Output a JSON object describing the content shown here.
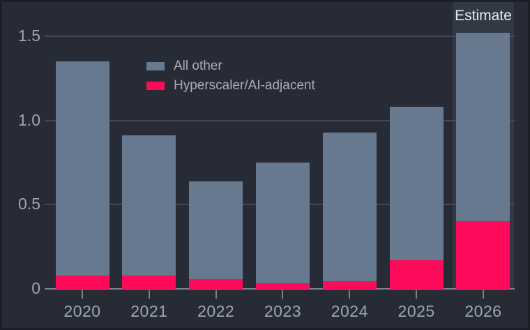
{
  "chart": {
    "background": "#262b35",
    "plot": {
      "grid_color": "#434a55",
      "axis_color": "#7e848e",
      "tick_label_color": "#9fa5ae"
    },
    "estimate": {
      "label": "Estimate",
      "band_color": "#323945",
      "text_color": "#e9ebee"
    },
    "legend": {
      "text_color": "#a9aeb6",
      "items": [
        {
          "label": "All other",
          "color": "#66798e"
        },
        {
          "label": "Hyperscaler/AI-adjacent",
          "color": "#fb0b5a"
        }
      ]
    }
  },
  "chart_data": {
    "type": "bar",
    "stacked": true,
    "title": "",
    "xlabel": "",
    "ylabel": "",
    "categories": [
      "2020",
      "2021",
      "2022",
      "2023",
      "2024",
      "2025",
      "2026"
    ],
    "series": [
      {
        "name": "Hyperscaler/AI-adjacent",
        "color": "#fb0b5a",
        "values": [
          0.08,
          0.08,
          0.06,
          0.035,
          0.045,
          0.17,
          0.4
        ]
      },
      {
        "name": "All other",
        "color": "#66798e",
        "values": [
          1.27,
          0.83,
          0.58,
          0.715,
          0.885,
          0.91,
          1.12
        ]
      }
    ],
    "totals": [
      1.35,
      0.91,
      0.64,
      0.75,
      0.93,
      1.08,
      1.52
    ],
    "ylim": [
      0,
      1.55
    ],
    "yticks": [
      {
        "label": "0",
        "value": 0
      },
      {
        "label": "0.5",
        "value": 0.5
      },
      {
        "label": "1.0",
        "value": 1.0
      },
      {
        "label": "1.5",
        "value": 1.5
      }
    ],
    "grid": true,
    "legend_position": "upper-center",
    "annotations": [
      {
        "text": "Estimate",
        "category": "2026",
        "type": "highlight-band"
      }
    ]
  }
}
